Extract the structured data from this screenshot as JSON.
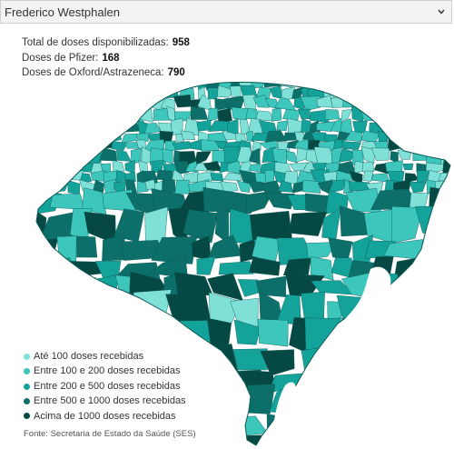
{
  "selector": {
    "value": "Frederico Westphalen",
    "caret_icon": "chevron-down-icon"
  },
  "stats": {
    "total_label": "Total de doses disponibilizadas:",
    "total_value": "958",
    "pfizer_label": "Doses de Pfizer:",
    "pfizer_value": "168",
    "oxford_label": "Doses de Oxford/Astrazeneca:",
    "oxford_value": "790"
  },
  "legend": [
    {
      "label": "Até 100 doses recebidas",
      "color": "#7fe0d8"
    },
    {
      "label": "Entre 100 e 200 doses recebidas",
      "color": "#3cc6bc"
    },
    {
      "label": "Entre 200 e 500 doses recebidas",
      "color": "#14a39b"
    },
    {
      "label": "Entre 500 e 1000 doses recebidas",
      "color": "#0c6f69"
    },
    {
      "label": "Acima de 1000 doses recebidas",
      "color": "#064944"
    }
  ],
  "source": "Fonte: Secretaria de Estado da Saúde (SES)",
  "colors": {
    "water": "#ffffff",
    "border": "#0a5a55"
  }
}
